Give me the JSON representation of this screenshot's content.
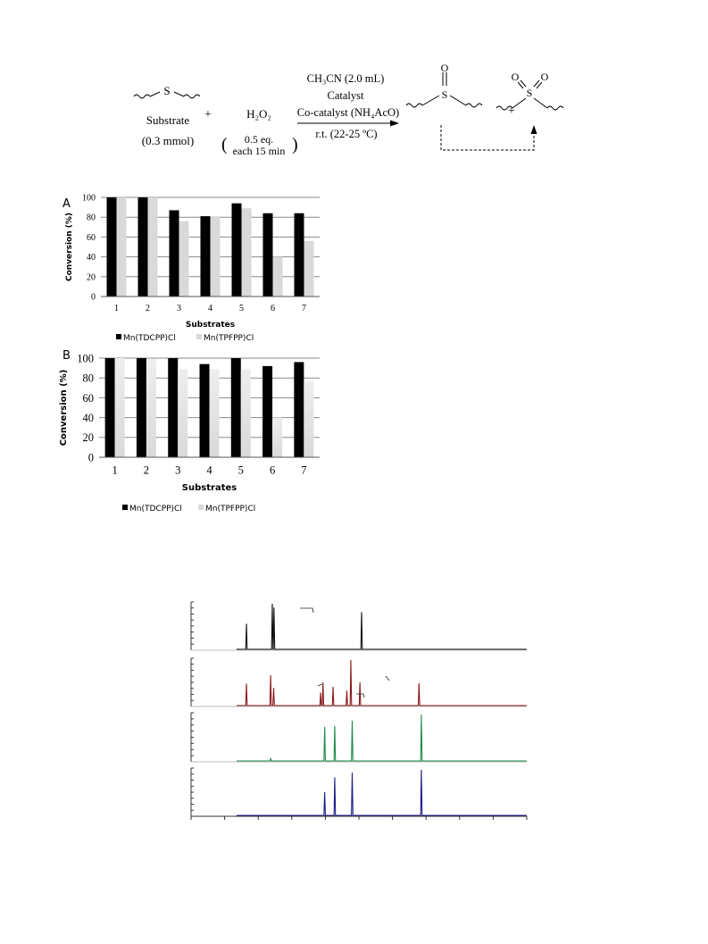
{
  "scheme": {
    "substrate_label": "Substrate",
    "substrate_amount": "(0.3 mmol)",
    "plus_1": "+",
    "plus_2": "+",
    "oxidant": "H₂O₂",
    "oxidant_dose_1": "0.5 eq.",
    "oxidant_dose_2": "each 15 min",
    "condition_1": "CH₃CN (2.0 mL)",
    "condition_2": "Catalyst",
    "condition_3": "Co-catalyst (NH₄AcO)",
    "condition_4": "r.t. (22-25 ºC)",
    "sulfur_symbol": "S",
    "oxygen_symbol": "O"
  },
  "chart_data": [
    {
      "panel_letter": "A",
      "type": "bar",
      "categories": [
        "1",
        "2",
        "3",
        "4",
        "5",
        "6",
        "7"
      ],
      "series": [
        {
          "name": "Mn(TDCPP)Cl",
          "values": [
            100,
            100,
            87,
            81,
            94,
            84,
            84
          ],
          "color": "#000000"
        },
        {
          "name": "Mn(TPFPP)Cl",
          "values": [
            100,
            100,
            76,
            81,
            89,
            40,
            56
          ],
          "color": "#d9d9d9"
        }
      ],
      "xlabel": "Substrates",
      "ylabel": "Conversion (%)",
      "ylim": [
        0,
        100
      ],
      "yticks": [
        "0",
        "20",
        "40",
        "60",
        "80",
        "100"
      ],
      "grid": true,
      "legend_position": "bottom-left"
    },
    {
      "panel_letter": "B",
      "type": "bar",
      "categories": [
        "1",
        "2",
        "3",
        "4",
        "5",
        "6",
        "7"
      ],
      "series": [
        {
          "name": "Mn(TDCPP)Cl",
          "values": [
            100,
            100,
            100,
            94,
            100,
            92,
            96
          ],
          "color": "#000000"
        },
        {
          "name": "Mn(TPFPP)Cl",
          "values": [
            100,
            99,
            89,
            89,
            89,
            40,
            77
          ],
          "color": "#d9d9d9"
        }
      ],
      "xlabel": "Substrates",
      "ylabel": "Conversion (%)",
      "ylim": [
        0,
        100
      ],
      "yticks": [
        "0",
        "20",
        "40",
        "60",
        "80",
        "100"
      ],
      "grid": true,
      "legend_position": "bottom-left"
    },
    {
      "type": "line",
      "subtype": "stacked chromatograms",
      "xlim": [
        0,
        100
      ],
      "traces": [
        {
          "color": "#111111",
          "peaks": [
            [
              16.5,
              0.55
            ],
            [
              24.2,
              0.98
            ],
            [
              24.7,
              0.9
            ],
            [
              50.8,
              0.8
            ]
          ]
        },
        {
          "color": "#8b1a1a",
          "peaks": [
            [
              16.5,
              0.47
            ],
            [
              23.7,
              0.65
            ],
            [
              24.6,
              0.38
            ],
            [
              38.6,
              0.28
            ],
            [
              39.3,
              0.5
            ],
            [
              42.3,
              0.4
            ],
            [
              46.4,
              0.32
            ],
            [
              47.6,
              0.98
            ],
            [
              50.3,
              0.5
            ],
            [
              67.9,
              0.48
            ]
          ]
        },
        {
          "color": "#1e8a4c",
          "peaks": [
            [
              23.7,
              0.05
            ],
            [
              39.8,
              0.72
            ],
            [
              42.8,
              0.74
            ],
            [
              48.0,
              0.85
            ],
            [
              68.6,
              0.98
            ]
          ]
        },
        {
          "color": "#1a1a8c",
          "peaks": [
            [
              39.8,
              0.5
            ],
            [
              42.8,
              0.82
            ],
            [
              48.0,
              0.92
            ],
            [
              68.6,
              0.98
            ]
          ]
        }
      ]
    }
  ]
}
